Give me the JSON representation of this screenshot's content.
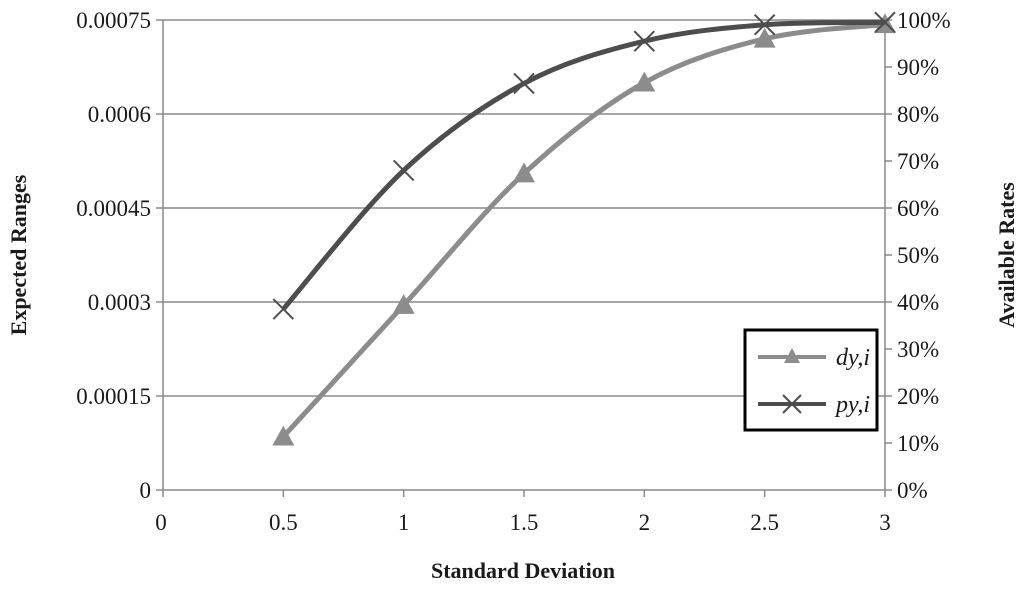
{
  "chart_data": {
    "type": "line",
    "title": "",
    "xlabel": "Standard Deviation",
    "ylabel": "Expected Ranges",
    "y2label": "Available Rates",
    "x_ticks": [
      "0",
      "0.5",
      "1",
      "1.5",
      "2",
      "2.5",
      "3"
    ],
    "y_ticks": [
      "0",
      "0.00015",
      "0.0003",
      "0.00045",
      "0.0006",
      "0.00075"
    ],
    "y2_ticks": [
      "0%",
      "10%",
      "20%",
      "30%",
      "40%",
      "50%",
      "60%",
      "70%",
      "80%",
      "90%",
      "100%"
    ],
    "xlim": [
      0,
      3
    ],
    "ylim": [
      0,
      0.00075
    ],
    "y2lim": [
      0,
      100
    ],
    "grid": "horizontal",
    "legend_position": "bottom-right",
    "series": [
      {
        "name": "dy,i",
        "axis": "left",
        "marker": "triangle",
        "color": "#8c8c8c",
        "x": [
          0.5,
          1,
          1.5,
          2,
          2.5,
          3
        ],
        "values": [
          8.5e-05,
          0.000295,
          0.000505,
          0.00065,
          0.00072,
          0.000743
        ]
      },
      {
        "name": "py,i",
        "axis": "right",
        "marker": "x",
        "color": "#4d4d4d",
        "x": [
          0.5,
          1,
          1.5,
          2,
          2.5,
          3
        ],
        "values": [
          38.5,
          68,
          86.5,
          95.5,
          99,
          99.5
        ]
      }
    ]
  }
}
